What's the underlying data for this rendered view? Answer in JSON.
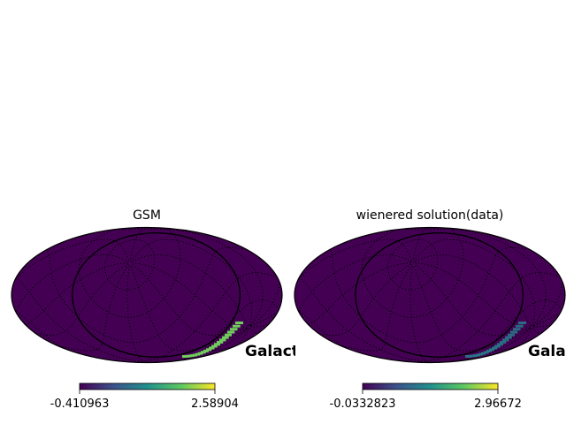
{
  "colormap": [
    "#440154",
    "#3b528b",
    "#21908d",
    "#5dc962",
    "#fde725"
  ],
  "map_background": "#440154",
  "chart_data": [
    {
      "type": "heatmap",
      "projection": "mollweide",
      "title": "GSM",
      "coord_label": "Galactic",
      "colorbar": {
        "min": "-0.410963",
        "max": "2.58904"
      },
      "graticule": true,
      "feature": {
        "intensity": 0.78,
        "dashed": false
      }
    },
    {
      "type": "heatmap",
      "projection": "mollweide",
      "title": "wienered solution(data)",
      "coord_label": "Galactic",
      "colorbar": {
        "min": "-0.0332823",
        "max": "2.96672"
      },
      "graticule": true,
      "feature": {
        "intensity": 0.45,
        "dashed": true
      }
    }
  ]
}
